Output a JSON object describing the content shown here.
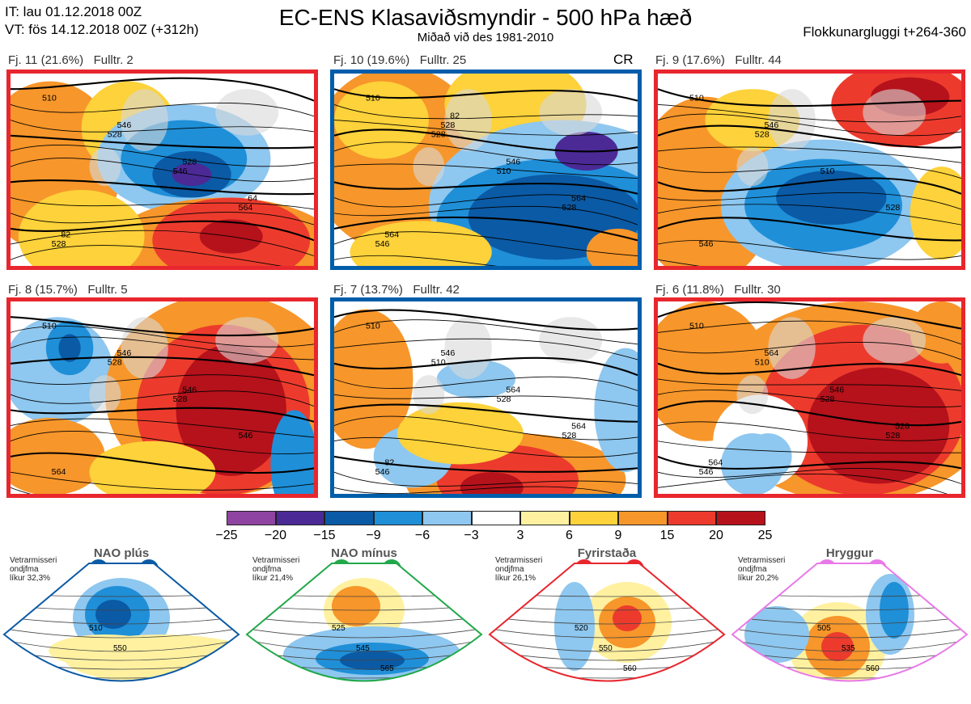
{
  "header": {
    "it_line": "IT: lau 01.12.2018 00Z",
    "vt_line": "VT: fös 14.12.2018 00Z  (+312h)",
    "title": "EC-ENS Klasaviðsmyndir - 500 hPa hæð",
    "subtitle": "Miðað við des 1981-2010",
    "window": "Flokkunargluggi t+264-360"
  },
  "panels": [
    {
      "label": "Fj. 11 (21.6%)   Fulltr. 2",
      "code": "",
      "frame_color": "#e8262d",
      "contours": [
        "510",
        "528",
        "546",
        "564",
        "528",
        "546",
        "528",
        "64",
        "82"
      ]
    },
    {
      "label": "Fj. 10 (19.6%)   Fulltr. 25",
      "code": "CR",
      "frame_color": "#005daa",
      "contours": [
        "510",
        "528",
        "510",
        "528",
        "546",
        "528",
        "546",
        "564",
        "564",
        "82"
      ]
    },
    {
      "label": "Fj. 9 (17.6%)   Fulltr. 44",
      "code": "",
      "frame_color": "#e8262d",
      "contours": [
        "510",
        "528",
        "510",
        "528",
        "546",
        "546"
      ]
    },
    {
      "label": "Fj. 8 (15.7%)   Fulltr. 5",
      "code": "",
      "frame_color": "#e8262d",
      "contours": [
        "510",
        "528",
        "528",
        "546",
        "564",
        "546",
        "546"
      ]
    },
    {
      "label": "Fj. 7 (13.7%)   Fulltr. 42",
      "code": "",
      "frame_color": "#005daa",
      "contours": [
        "510",
        "510",
        "528",
        "528",
        "546",
        "546",
        "564",
        "564",
        "82"
      ]
    },
    {
      "label": "Fj. 6 (11.8%)   Fulltr. 30",
      "code": "",
      "frame_color": "#e8262d",
      "contours": [
        "510",
        "510",
        "528",
        "528",
        "546",
        "564",
        "546",
        "528",
        "564"
      ]
    }
  ],
  "colorbar": {
    "ticks": [
      "−25",
      "−20",
      "−15",
      "−9",
      "−6",
      "−3",
      "3",
      "6",
      "9",
      "15",
      "20",
      "25"
    ],
    "colors": [
      "#8e44a0",
      "#4b2a96",
      "#0b5aa5",
      "#1f8fd8",
      "#8ec7ef",
      "#ffffff",
      "#fff1a0",
      "#fdd23a",
      "#f7962a",
      "#ec3b2d",
      "#b5121b"
    ]
  },
  "regimes": [
    {
      "name": "NAO plús",
      "note": [
        "Vetrarmisseri",
        "ondjfma",
        "líkur 32,3%"
      ],
      "color": "#0b5aa5",
      "contours": [
        "510",
        "550"
      ]
    },
    {
      "name": "NAO mínus",
      "note": [
        "Vetrarmisseri",
        "ondjfma",
        "líkur 21,4%"
      ],
      "color": "#22a84a",
      "contours": [
        "525",
        "545",
        "565"
      ]
    },
    {
      "name": "Fyrirstaða",
      "note": [
        "Vetrarmisseri",
        "ondjfma",
        "líkur 26,1%"
      ],
      "color": "#e8262d",
      "contours": [
        "520",
        "550",
        "560"
      ]
    },
    {
      "name": "Hryggur",
      "note": [
        "Vetrarmisseri",
        "ondjfma",
        "líkur 20,2%"
      ],
      "color": "#e879e8",
      "contours": [
        "505",
        "535",
        "560"
      ]
    }
  ]
}
